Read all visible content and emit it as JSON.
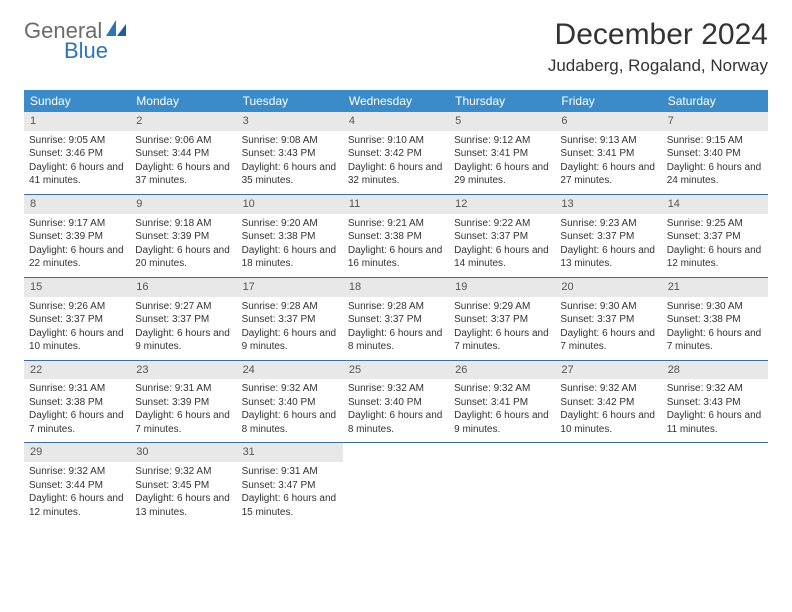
{
  "logo": {
    "word1": "General",
    "word2": "Blue"
  },
  "title": "December 2024",
  "location": "Judaberg, Rogaland, Norway",
  "colors": {
    "header_bg": "#3b8bc9",
    "row_border": "#3b6fa0",
    "daynum_bg": "#e8e8e8",
    "logo_gray": "#6b6b6b",
    "logo_blue": "#2e75b6"
  },
  "day_headers": [
    "Sunday",
    "Monday",
    "Tuesday",
    "Wednesday",
    "Thursday",
    "Friday",
    "Saturday"
  ],
  "weeks": [
    [
      {
        "n": "1",
        "sr": "9:05 AM",
        "ss": "3:46 PM",
        "dl": "6 hours and 41 minutes."
      },
      {
        "n": "2",
        "sr": "9:06 AM",
        "ss": "3:44 PM",
        "dl": "6 hours and 37 minutes."
      },
      {
        "n": "3",
        "sr": "9:08 AM",
        "ss": "3:43 PM",
        "dl": "6 hours and 35 minutes."
      },
      {
        "n": "4",
        "sr": "9:10 AM",
        "ss": "3:42 PM",
        "dl": "6 hours and 32 minutes."
      },
      {
        "n": "5",
        "sr": "9:12 AM",
        "ss": "3:41 PM",
        "dl": "6 hours and 29 minutes."
      },
      {
        "n": "6",
        "sr": "9:13 AM",
        "ss": "3:41 PM",
        "dl": "6 hours and 27 minutes."
      },
      {
        "n": "7",
        "sr": "9:15 AM",
        "ss": "3:40 PM",
        "dl": "6 hours and 24 minutes."
      }
    ],
    [
      {
        "n": "8",
        "sr": "9:17 AM",
        "ss": "3:39 PM",
        "dl": "6 hours and 22 minutes."
      },
      {
        "n": "9",
        "sr": "9:18 AM",
        "ss": "3:39 PM",
        "dl": "6 hours and 20 minutes."
      },
      {
        "n": "10",
        "sr": "9:20 AM",
        "ss": "3:38 PM",
        "dl": "6 hours and 18 minutes."
      },
      {
        "n": "11",
        "sr": "9:21 AM",
        "ss": "3:38 PM",
        "dl": "6 hours and 16 minutes."
      },
      {
        "n": "12",
        "sr": "9:22 AM",
        "ss": "3:37 PM",
        "dl": "6 hours and 14 minutes."
      },
      {
        "n": "13",
        "sr": "9:23 AM",
        "ss": "3:37 PM",
        "dl": "6 hours and 13 minutes."
      },
      {
        "n": "14",
        "sr": "9:25 AM",
        "ss": "3:37 PM",
        "dl": "6 hours and 12 minutes."
      }
    ],
    [
      {
        "n": "15",
        "sr": "9:26 AM",
        "ss": "3:37 PM",
        "dl": "6 hours and 10 minutes."
      },
      {
        "n": "16",
        "sr": "9:27 AM",
        "ss": "3:37 PM",
        "dl": "6 hours and 9 minutes."
      },
      {
        "n": "17",
        "sr": "9:28 AM",
        "ss": "3:37 PM",
        "dl": "6 hours and 9 minutes."
      },
      {
        "n": "18",
        "sr": "9:28 AM",
        "ss": "3:37 PM",
        "dl": "6 hours and 8 minutes."
      },
      {
        "n": "19",
        "sr": "9:29 AM",
        "ss": "3:37 PM",
        "dl": "6 hours and 7 minutes."
      },
      {
        "n": "20",
        "sr": "9:30 AM",
        "ss": "3:37 PM",
        "dl": "6 hours and 7 minutes."
      },
      {
        "n": "21",
        "sr": "9:30 AM",
        "ss": "3:38 PM",
        "dl": "6 hours and 7 minutes."
      }
    ],
    [
      {
        "n": "22",
        "sr": "9:31 AM",
        "ss": "3:38 PM",
        "dl": "6 hours and 7 minutes."
      },
      {
        "n": "23",
        "sr": "9:31 AM",
        "ss": "3:39 PM",
        "dl": "6 hours and 7 minutes."
      },
      {
        "n": "24",
        "sr": "9:32 AM",
        "ss": "3:40 PM",
        "dl": "6 hours and 8 minutes."
      },
      {
        "n": "25",
        "sr": "9:32 AM",
        "ss": "3:40 PM",
        "dl": "6 hours and 8 minutes."
      },
      {
        "n": "26",
        "sr": "9:32 AM",
        "ss": "3:41 PM",
        "dl": "6 hours and 9 minutes."
      },
      {
        "n": "27",
        "sr": "9:32 AM",
        "ss": "3:42 PM",
        "dl": "6 hours and 10 minutes."
      },
      {
        "n": "28",
        "sr": "9:32 AM",
        "ss": "3:43 PM",
        "dl": "6 hours and 11 minutes."
      }
    ],
    [
      {
        "n": "29",
        "sr": "9:32 AM",
        "ss": "3:44 PM",
        "dl": "6 hours and 12 minutes."
      },
      {
        "n": "30",
        "sr": "9:32 AM",
        "ss": "3:45 PM",
        "dl": "6 hours and 13 minutes."
      },
      {
        "n": "31",
        "sr": "9:31 AM",
        "ss": "3:47 PM",
        "dl": "6 hours and 15 minutes."
      },
      null,
      null,
      null,
      null
    ]
  ],
  "labels": {
    "sunrise": "Sunrise:",
    "sunset": "Sunset:",
    "daylight": "Daylight:"
  }
}
